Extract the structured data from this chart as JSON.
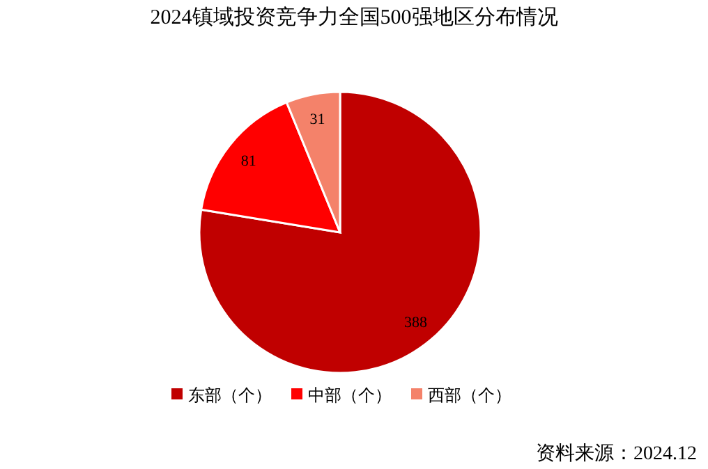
{
  "chart_data": {
    "type": "pie",
    "title": "2024镇域投资竞争力全国500强地区分布情况",
    "categories": [
      "东部（个）",
      "中部（个）",
      "西部（个）"
    ],
    "values": [
      388,
      81,
      31
    ],
    "colors": [
      "#c00000",
      "#ff0000",
      "#f4826a"
    ],
    "data_labels": true,
    "legend": "bottom",
    "annotations": [
      "资料来源：2024.12"
    ]
  }
}
